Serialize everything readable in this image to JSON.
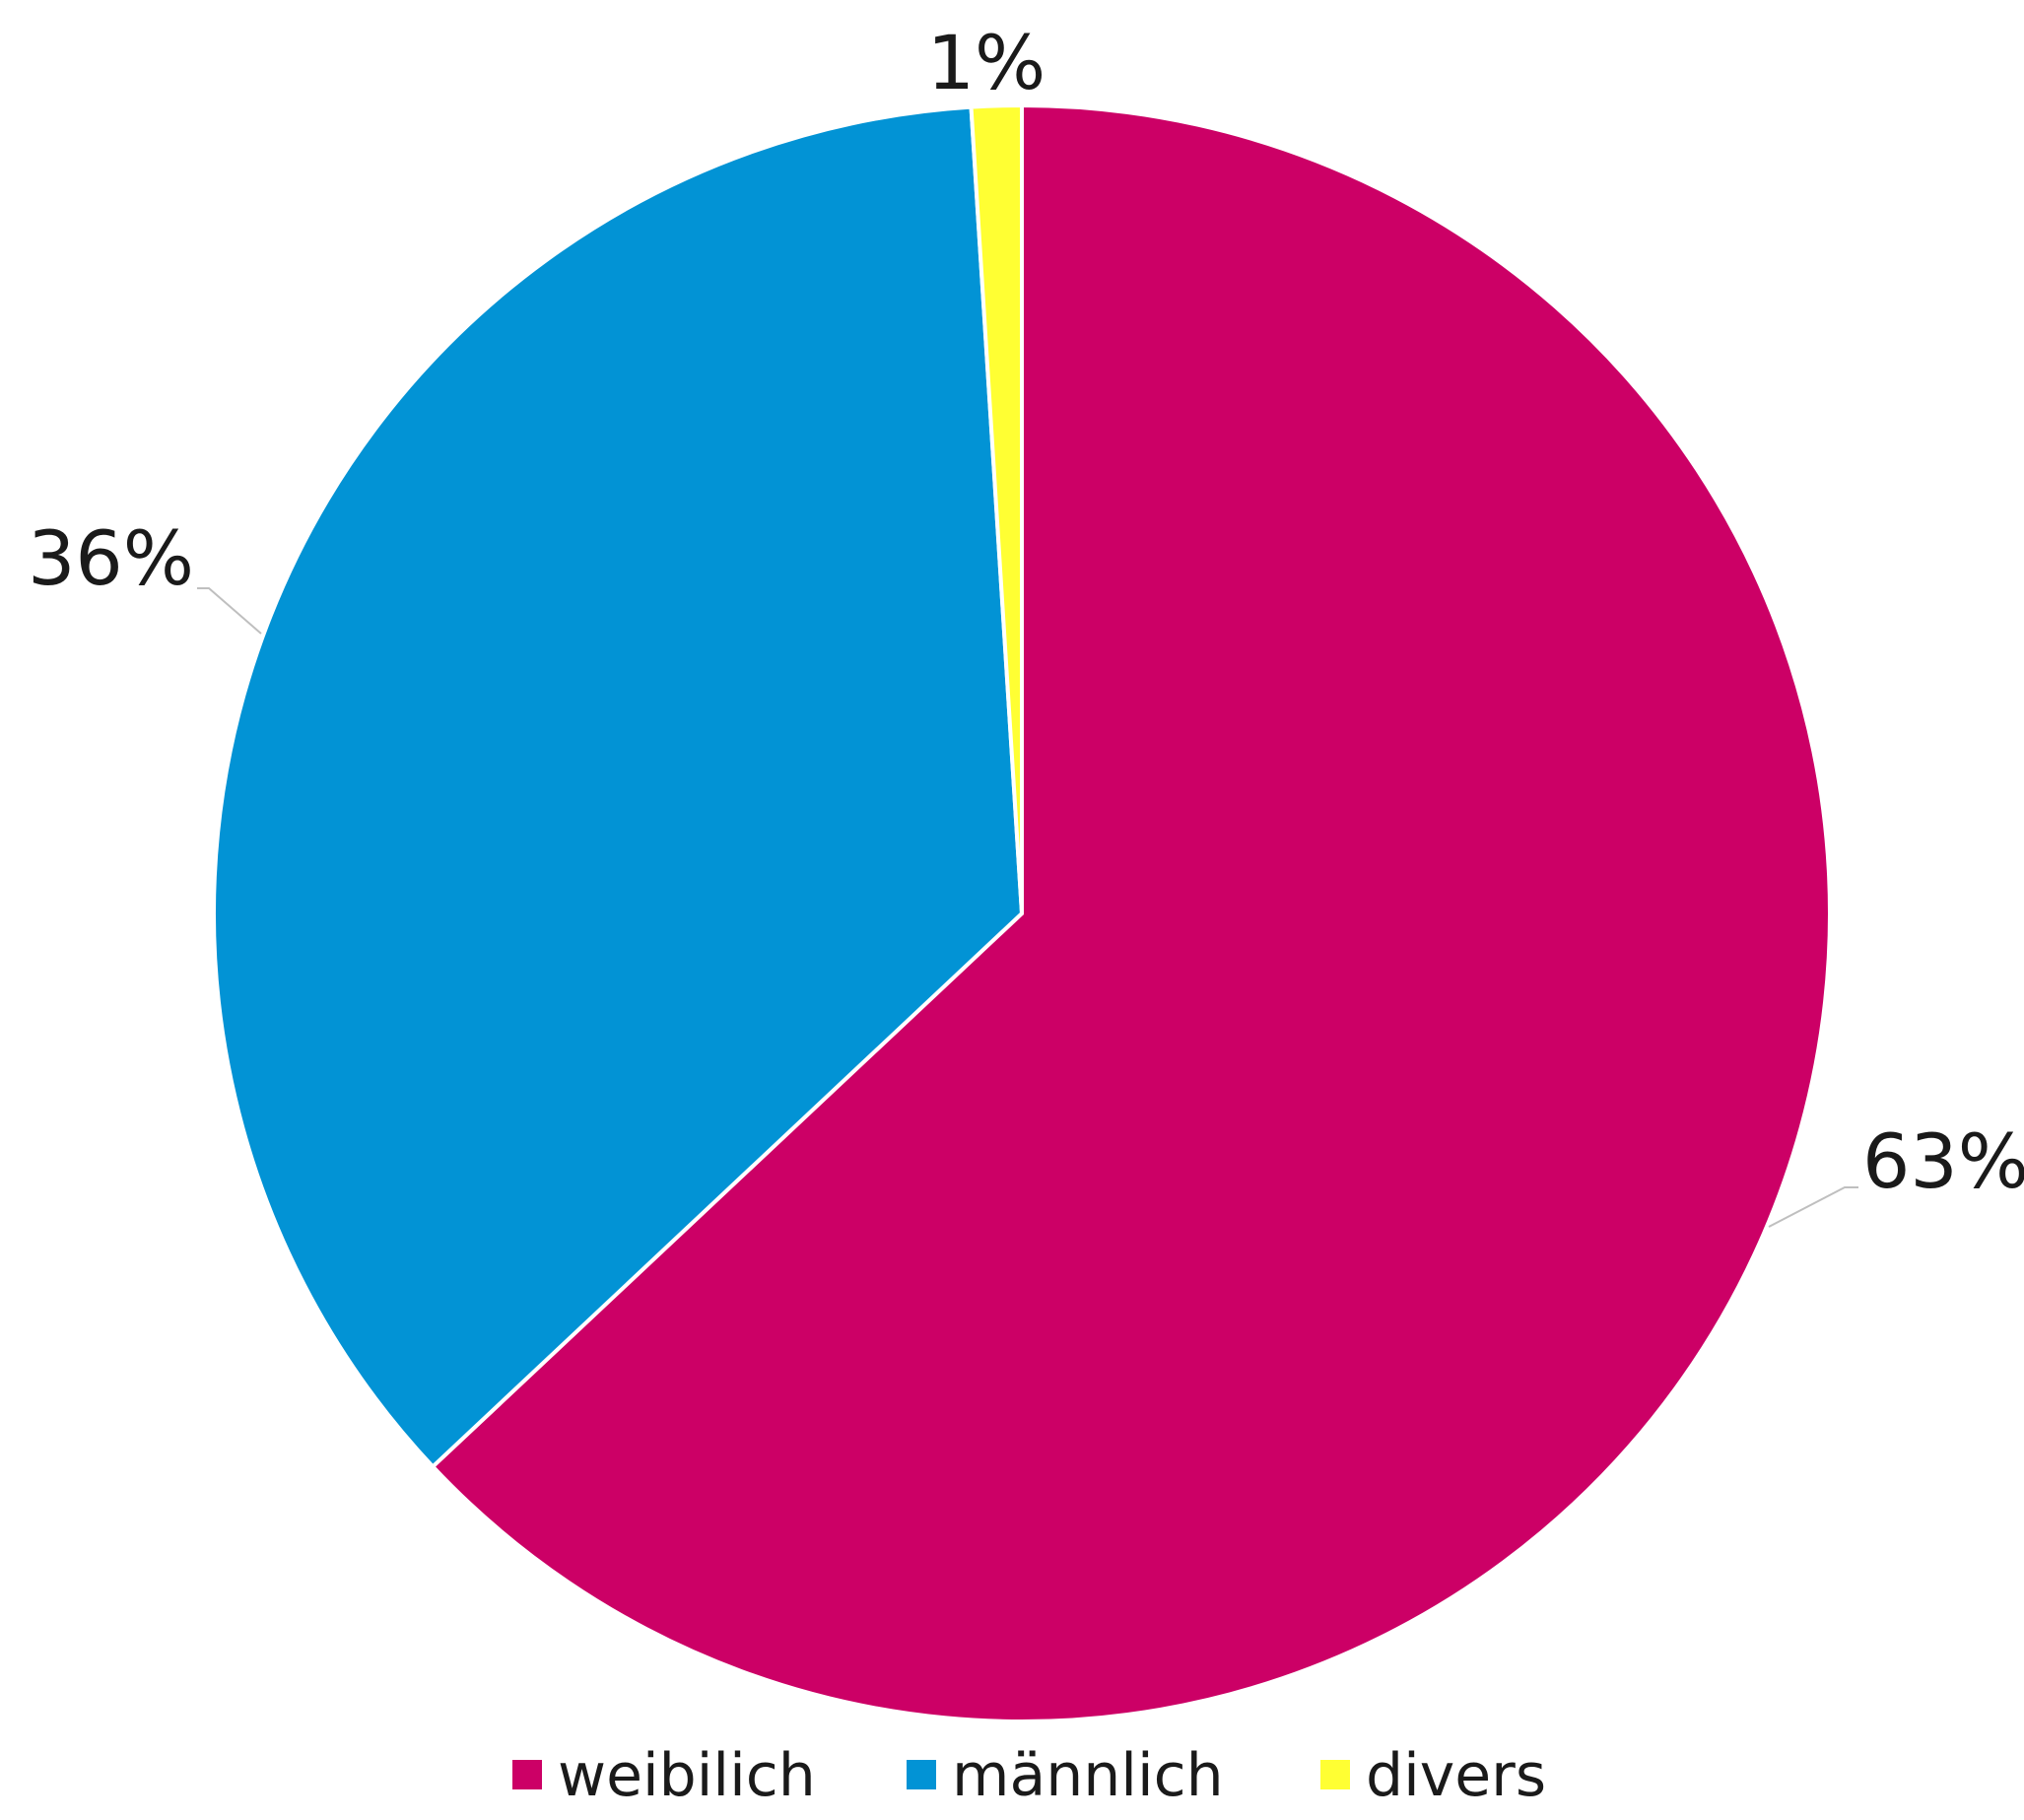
{
  "chart_data": {
    "type": "pie",
    "categories": [
      "weibilich",
      "männlich",
      "divers"
    ],
    "values": [
      63,
      36,
      1
    ],
    "data_labels": [
      "63%",
      "36%",
      "1%"
    ],
    "colors": [
      "#cc0066",
      "#0293d5",
      "#ffff33"
    ],
    "start_angle": "12 o'clock",
    "direction": "clockwise",
    "legend": {
      "position": "bottom",
      "items": [
        "weibilich",
        "männlich",
        "divers"
      ]
    },
    "title": ""
  }
}
